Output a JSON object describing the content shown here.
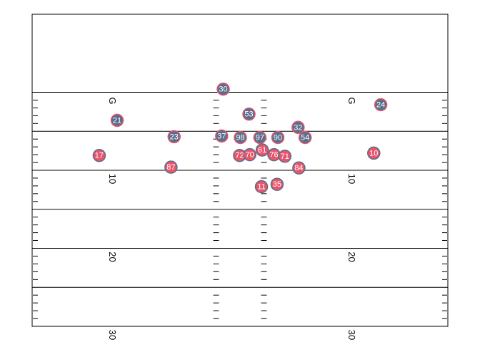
{
  "chart_data": {
    "type": "scatter",
    "title": "",
    "xlabel": "",
    "ylabel": "",
    "xlim": [
      0,
      53.3
    ],
    "ylim": [
      30,
      -10
    ],
    "yard_lines": [
      0,
      5,
      10,
      15,
      20,
      25,
      30
    ],
    "yard_labels": [
      {
        "text": "G",
        "y": 0
      },
      {
        "text": "10",
        "y": 10
      },
      {
        "text": "20",
        "y": 20
      },
      {
        "text": "30",
        "y": 30
      }
    ],
    "colors": {
      "field_line": "#000000",
      "offense_fill": "#E8566C",
      "offense_stroke": "#5A6E8C",
      "defense_fill": "#5A6E8C",
      "defense_stroke": "#E8566C",
      "player_text": "#ffffff"
    },
    "series": [
      {
        "team": "defense",
        "points": [
          {
            "label": "30",
            "x": 24.5,
            "y": -0.4
          },
          {
            "label": "24",
            "x": 44.7,
            "y": 1.6
          },
          {
            "label": "53",
            "x": 27.8,
            "y": 2.8
          },
          {
            "label": "21",
            "x": 10.9,
            "y": 3.6
          },
          {
            "label": "32",
            "x": 34.1,
            "y": 4.5
          },
          {
            "label": "23",
            "x": 18.2,
            "y": 5.7
          },
          {
            "label": "37",
            "x": 24.3,
            "y": 5.6
          },
          {
            "label": "98",
            "x": 26.7,
            "y": 5.8
          },
          {
            "label": "97",
            "x": 29.2,
            "y": 5.8
          },
          {
            "label": "90",
            "x": 31.5,
            "y": 5.8
          },
          {
            "label": "54",
            "x": 35.0,
            "y": 5.8
          }
        ]
      },
      {
        "team": "offense",
        "points": [
          {
            "label": "17",
            "x": 8.6,
            "y": 8.1
          },
          {
            "label": "10",
            "x": 43.8,
            "y": 7.8
          },
          {
            "label": "61",
            "x": 29.5,
            "y": 7.4
          },
          {
            "label": "72",
            "x": 26.6,
            "y": 8.1
          },
          {
            "label": "70",
            "x": 27.9,
            "y": 8.0
          },
          {
            "label": "76",
            "x": 31.0,
            "y": 8.0
          },
          {
            "label": "71",
            "x": 32.4,
            "y": 8.2
          },
          {
            "label": "87",
            "x": 17.8,
            "y": 9.6
          },
          {
            "label": "84",
            "x": 34.2,
            "y": 9.7
          },
          {
            "label": "11",
            "x": 29.4,
            "y": 12.1
          },
          {
            "label": "35",
            "x": 31.4,
            "y": 11.8
          }
        ]
      }
    ]
  }
}
